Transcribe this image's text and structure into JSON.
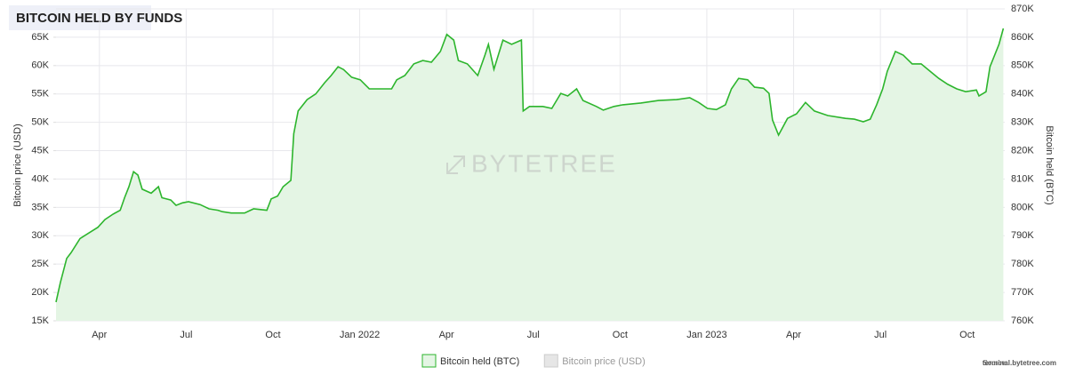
{
  "chart_data": {
    "type": "area",
    "title": "BITCOIN HELD BY FUNDS",
    "y_label": "Bitcoin price (USD)",
    "y2_label": "Bitcoin held (BTC)",
    "watermark": "BYTETREE",
    "source_label": "Source:",
    "source": "terminal.bytetree.com",
    "grid": true,
    "legend": "bottom",
    "xlim": [
      1.5,
      34.3
    ],
    "xticks": [
      {
        "value": 3,
        "label": "Apr"
      },
      {
        "value": 6,
        "label": "Jul"
      },
      {
        "value": 9,
        "label": "Oct"
      },
      {
        "value": 12,
        "label": "Jan 2022"
      },
      {
        "value": 15,
        "label": "Apr"
      },
      {
        "value": 18,
        "label": "Jul"
      },
      {
        "value": 21,
        "label": "Oct"
      },
      {
        "value": 24,
        "label": "Jan 2023"
      },
      {
        "value": 27,
        "label": "Apr"
      },
      {
        "value": 30,
        "label": "Jul"
      },
      {
        "value": 33,
        "label": "Oct"
      }
    ],
    "ylim": [
      15000,
      70000
    ],
    "yticks": [
      {
        "value": 15000,
        "label": "15K"
      },
      {
        "value": 20000,
        "label": "20K"
      },
      {
        "value": 25000,
        "label": "25K"
      },
      {
        "value": 30000,
        "label": "30K"
      },
      {
        "value": 35000,
        "label": "35K"
      },
      {
        "value": 40000,
        "label": "40K"
      },
      {
        "value": 45000,
        "label": "45K"
      },
      {
        "value": 50000,
        "label": "50K"
      },
      {
        "value": 55000,
        "label": "55K"
      },
      {
        "value": 60000,
        "label": "60K"
      },
      {
        "value": 65000,
        "label": "65K"
      }
    ],
    "y2lim": [
      760000,
      870000
    ],
    "y2ticks": [
      {
        "value": 760000,
        "label": "760K"
      },
      {
        "value": 770000,
        "label": "770K"
      },
      {
        "value": 780000,
        "label": "780K"
      },
      {
        "value": 790000,
        "label": "790K"
      },
      {
        "value": 800000,
        "label": "800K"
      },
      {
        "value": 810000,
        "label": "810K"
      },
      {
        "value": 820000,
        "label": "820K"
      },
      {
        "value": 830000,
        "label": "830K"
      },
      {
        "value": 840000,
        "label": "840K"
      },
      {
        "value": 850000,
        "label": "850K"
      },
      {
        "value": 860000,
        "label": "860K"
      },
      {
        "value": 870000,
        "label": "870K"
      }
    ],
    "x": [
      1.5,
      1.65,
      1.87,
      2.02,
      2.33,
      2.64,
      2.95,
      3.19,
      3.47,
      3.72,
      3.87,
      4.02,
      4.18,
      4.33,
      4.48,
      4.79,
      5.04,
      5.16,
      5.47,
      5.65,
      5.87,
      6.08,
      6.48,
      6.79,
      7.1,
      7.25,
      7.56,
      8.02,
      8.33,
      8.79,
      8.94,
      9.16,
      9.35,
      9.62,
      9.72,
      9.87,
      10.18,
      10.48,
      10.79,
      11.01,
      11.25,
      11.44,
      11.72,
      12.02,
      12.33,
      12.79,
      13.1,
      13.28,
      13.56,
      13.87,
      14.18,
      14.48,
      14.79,
      15.01,
      15.25,
      15.41,
      15.72,
      16.08,
      16.33,
      16.45,
      16.64,
      16.95,
      17.25,
      17.59,
      17.65,
      17.87,
      18.33,
      18.64,
      18.95,
      19.19,
      19.5,
      19.72,
      20.18,
      20.42,
      20.79,
      21.1,
      21.72,
      22.33,
      22.95,
      23.41,
      23.72,
      24.02,
      24.33,
      24.64,
      24.85,
      25.1,
      25.41,
      25.65,
      25.96,
      26.15,
      26.27,
      26.48,
      26.79,
      27.1,
      27.41,
      27.72,
      28.18,
      28.79,
      29.1,
      29.41,
      29.65,
      29.87,
      30.08,
      30.24,
      30.52,
      30.79,
      31.1,
      31.41,
      31.72,
      32.02,
      32.33,
      32.64,
      32.95,
      33.32,
      33.41,
      33.65,
      33.79,
      34.1,
      34.25
    ],
    "series": [
      {
        "name": "Bitcoin held (BTC)",
        "color": "#2db52d",
        "fill": "#e4f5e4",
        "axis": "y2",
        "values": [
          766600,
          773500,
          782000,
          784000,
          789000,
          791000,
          793000,
          795700,
          797600,
          799000,
          803400,
          807300,
          812600,
          811400,
          806400,
          805000,
          807300,
          803400,
          802600,
          800700,
          801600,
          802000,
          801000,
          799500,
          799000,
          798500,
          798000,
          798000,
          799500,
          799000,
          803000,
          804000,
          807300,
          809500,
          826000,
          834000,
          838000,
          840000,
          844000,
          846500,
          849600,
          848600,
          845900,
          845000,
          841800,
          841800,
          841800,
          845000,
          846500,
          850600,
          851800,
          851200,
          855000,
          861000,
          859000,
          851800,
          850600,
          846500,
          853700,
          857500,
          848700,
          859000,
          857500,
          859000,
          834000,
          835600,
          835600,
          834900,
          840200,
          839300,
          841800,
          837700,
          835600,
          834300,
          835600,
          836200,
          836800,
          837700,
          838000,
          838700,
          837000,
          834900,
          834500,
          836200,
          841800,
          845500,
          845000,
          842400,
          842000,
          840200,
          830800,
          825500,
          831400,
          833000,
          837000,
          834000,
          832400,
          831400,
          831100,
          830200,
          831100,
          836200,
          841800,
          848000,
          855000,
          853700,
          850600,
          850600,
          848000,
          845500,
          843400,
          841800,
          840800,
          841400,
          839300,
          840800,
          849600,
          857500,
          863100
        ]
      }
    ],
    "hidden_series": [
      {
        "name": "Bitcoin price (USD)",
        "color": "#e6e6e6"
      }
    ]
  }
}
